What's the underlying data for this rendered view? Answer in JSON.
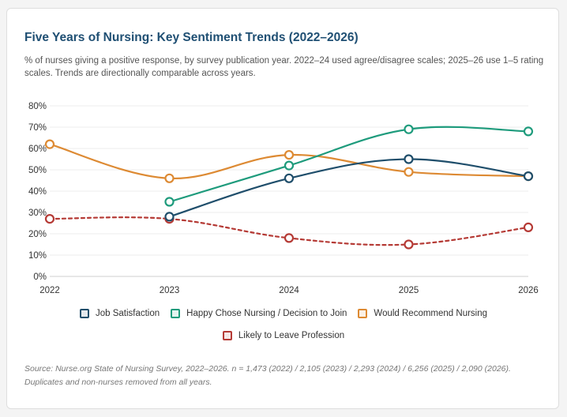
{
  "title": "Five Years of Nursing: Key Sentiment Trends (2022–2026)",
  "subtitle": "% of nurses giving a positive response, by survey publication year. 2022–24 used agree/disagree scales; 2025–26 use 1–5 rating scales. Trends are directionally comparable across years.",
  "source": "Source: Nurse.org State of Nursing Survey, 2022–2026. n = 1,473 (2022) / 2,105 (2023) / 2,293 (2024) / 6,256 (2025) / 2,090 (2026). Duplicates and non-nurses removed from all years.",
  "chart_data": {
    "type": "line",
    "x": [
      "2022",
      "2023",
      "2024",
      "2025",
      "2026"
    ],
    "ylim": [
      0,
      80
    ],
    "y_ticks": [
      "0%",
      "10%",
      "20%",
      "30%",
      "40%",
      "50%",
      "60%",
      "70%",
      "80%"
    ],
    "grid": true,
    "legend_position": "bottom",
    "series": [
      {
        "name": "Job Satisfaction",
        "color": "#1f4e6b",
        "dashed": false,
        "values": [
          null,
          28,
          46,
          55,
          47
        ]
      },
      {
        "name": "Happy Chose Nursing / Decision to Join",
        "color": "#1e9b7c",
        "dashed": false,
        "values": [
          null,
          35,
          52,
          69,
          68
        ]
      },
      {
        "name": "Would Recommend Nursing",
        "color": "#dd8a33",
        "dashed": false,
        "values": [
          62,
          46,
          57,
          49,
          47
        ]
      },
      {
        "name": "Likely to Leave Profession",
        "color": "#b53a35",
        "dashed": true,
        "values": [
          27,
          27,
          18,
          15,
          23
        ]
      }
    ]
  }
}
